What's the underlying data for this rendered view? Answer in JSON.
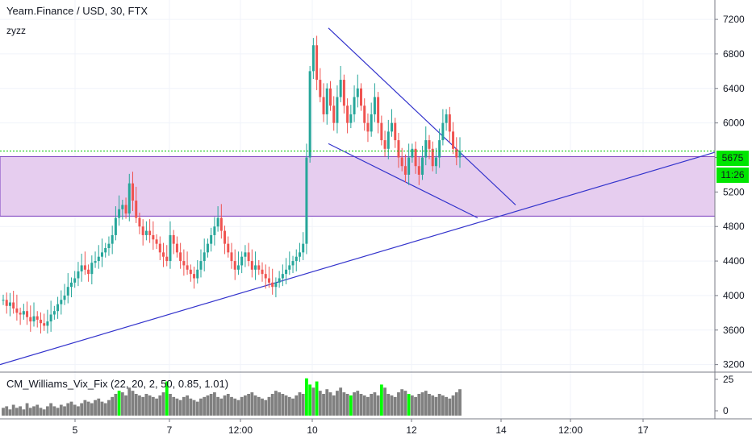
{
  "header": {
    "title": "Yearn.Finance / USD, 30, FTX",
    "subtitle": "zyzz"
  },
  "price": {
    "current": "5675",
    "timer": "11:26",
    "tag_color": "#00e600"
  },
  "indicator": {
    "label": "CM_Williams_Vix_Fix (22, 20, 2, 50, 0.85, 1.01)",
    "y_ticks": [
      "25",
      "0"
    ]
  },
  "colors": {
    "up": "#26a69a",
    "down": "#ef5350",
    "line": "#3333cc",
    "zone_fill": "#e6cdef",
    "zone_border": "#7b3fbf",
    "price_line": "#00c800",
    "hist": "#808080",
    "hist_hi": "#00ff00"
  },
  "chart_data": {
    "type": "candlestick",
    "y_axis": {
      "ticks": [
        3200,
        3600,
        4000,
        4400,
        4800,
        5200,
        5600,
        6000,
        6400,
        6800,
        7200
      ],
      "range": [
        3150,
        7350
      ]
    },
    "x_axis": {
      "ticks": [
        "5",
        "7",
        "12:00",
        "10",
        "12",
        "14",
        "12:00",
        "17"
      ]
    },
    "current_price": 5675,
    "zone": {
      "low": 4920,
      "high": 5610
    },
    "trendlines": [
      {
        "from": {
          "x": "start",
          "y": 3200
        },
        "to": {
          "x": "right edge",
          "y": 5660
        }
      },
      {
        "from": {
          "x": "10",
          "y": 7100
        },
        "to": {
          "x": "14",
          "y": 5050
        }
      },
      {
        "from": {
          "x": "10",
          "y": 5760
        },
        "to": {
          "x": "13",
          "y": 4900
        }
      }
    ],
    "series_close": [
      3950,
      3880,
      3920,
      3850,
      3800,
      3780,
      3820,
      3750,
      3700,
      3760,
      3720,
      3680,
      3650,
      3700,
      3780,
      3820,
      3900,
      3950,
      4000,
      4100,
      4150,
      4200,
      4280,
      4350,
      4300,
      4250,
      4380,
      4400,
      4450,
      4500,
      4550,
      4600,
      4700,
      4900,
      5000,
      5050,
      4950,
      5300,
      5100,
      4900,
      4800,
      4700,
      4750,
      4700,
      4650,
      4600,
      4500,
      4450,
      4400,
      4700,
      4600,
      4500,
      4400,
      4350,
      4300,
      4250,
      4200,
      4300,
      4400,
      4500,
      4600,
      4700,
      4800,
      4900,
      4750,
      4600,
      4500,
      4400,
      4300,
      4350,
      4450,
      4500,
      4400,
      4300,
      4350,
      4300,
      4250,
      4200,
      4150,
      4100,
      4150,
      4200,
      4250,
      4300,
      4350,
      4400,
      4450,
      4500,
      4600,
      5600,
      6600,
      6900,
      6500,
      6300,
      6100,
      6400,
      6200,
      6000,
      6300,
      6500,
      6200,
      6000,
      6100,
      6300,
      6400,
      6200,
      6000,
      5900,
      6100,
      6300,
      6000,
      5800,
      5700,
      5900,
      6000,
      5800,
      5600,
      5500,
      5400,
      5600,
      5700,
      5500,
      5400,
      5600,
      5800,
      5700,
      5500,
      5600,
      5800,
      6000,
      6100,
      5900,
      5700,
      5600,
      5675
    ],
    "indicator_values": [
      5,
      6,
      4,
      7,
      5,
      6,
      4,
      8,
      5,
      6,
      7,
      5,
      4,
      6,
      8,
      6,
      5,
      7,
      6,
      8,
      9,
      7,
      6,
      8,
      10,
      9,
      8,
      10,
      11,
      9,
      8,
      10,
      12,
      14,
      16,
      15,
      13,
      18,
      16,
      14,
      13,
      12,
      14,
      13,
      12,
      11,
      13,
      15,
      22,
      14,
      12,
      11,
      10,
      12,
      13,
      11,
      10,
      9,
      11,
      12,
      13,
      14,
      15,
      12,
      11,
      13,
      14,
      12,
      11,
      10,
      12,
      13,
      14,
      15,
      13,
      12,
      11,
      10,
      12,
      14,
      16,
      15,
      14,
      13,
      12,
      11,
      13,
      15,
      14,
      24,
      20,
      18,
      22,
      16,
      14,
      17,
      15,
      13,
      16,
      18,
      15,
      14,
      13,
      15,
      16,
      14,
      13,
      12,
      14,
      15,
      13,
      20,
      18,
      14,
      13,
      12,
      15,
      17,
      16,
      14,
      13,
      12,
      14,
      15,
      16,
      14,
      13,
      12,
      14,
      13,
      12,
      11,
      13,
      15,
      17
    ]
  }
}
